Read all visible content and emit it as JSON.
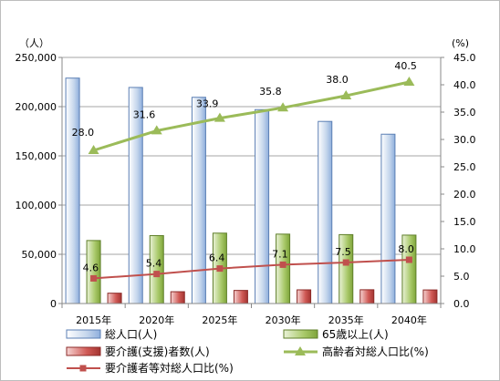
{
  "chart_data": {
    "type": "bar",
    "categories": [
      "2015年",
      "2020年",
      "2025年",
      "2030年",
      "2035年",
      "2040年"
    ],
    "left_unit": "（人）",
    "right_unit": "(%)",
    "left_axis": {
      "min": 0,
      "max": 250000,
      "step": 50000,
      "ticks": [
        "0",
        "50,000",
        "100,000",
        "150,000",
        "200,000",
        "250,000"
      ]
    },
    "right_axis": {
      "min": 0,
      "max": 45,
      "step": 5,
      "ticks": [
        "0.0",
        "5.0",
        "10.0",
        "15.0",
        "20.0",
        "25.0",
        "30.0",
        "35.0",
        "40.0",
        "45.0"
      ]
    },
    "grid": true,
    "legend_position": "bottom",
    "series": [
      {
        "name": "総人口(人)",
        "kind": "bar",
        "axis": "left",
        "color": "#b8cce4",
        "values": [
          229000,
          219500,
          209500,
          197000,
          185000,
          172000
        ]
      },
      {
        "name": "65歳以上(人)",
        "kind": "bar",
        "axis": "left",
        "color": "#9bbb59",
        "values": [
          64000,
          69000,
          71500,
          70500,
          70000,
          69500
        ]
      },
      {
        "name": "要介護(支援)者数(人)",
        "kind": "bar",
        "axis": "left",
        "color": "#c0504d",
        "values": [
          10500,
          12000,
          13300,
          13900,
          14000,
          13800
        ]
      },
      {
        "name": "高齢者対総人口比(%)",
        "kind": "line",
        "axis": "right",
        "color": "#9bbb59",
        "marker": "triangle",
        "values": [
          28.0,
          31.6,
          33.9,
          35.8,
          38.0,
          40.5
        ],
        "labels": [
          "28.0",
          "31.6",
          "33.9",
          "35.8",
          "38.0",
          "40.5"
        ]
      },
      {
        "name": "要介護者等対総人口比(%)",
        "kind": "line",
        "axis": "right",
        "color": "#c0504d",
        "marker": "square",
        "values": [
          4.6,
          5.4,
          6.4,
          7.1,
          7.5,
          8.0
        ],
        "labels": [
          "4.6",
          "5.4",
          "6.4",
          "7.1",
          "7.5",
          "8.0"
        ]
      }
    ]
  }
}
